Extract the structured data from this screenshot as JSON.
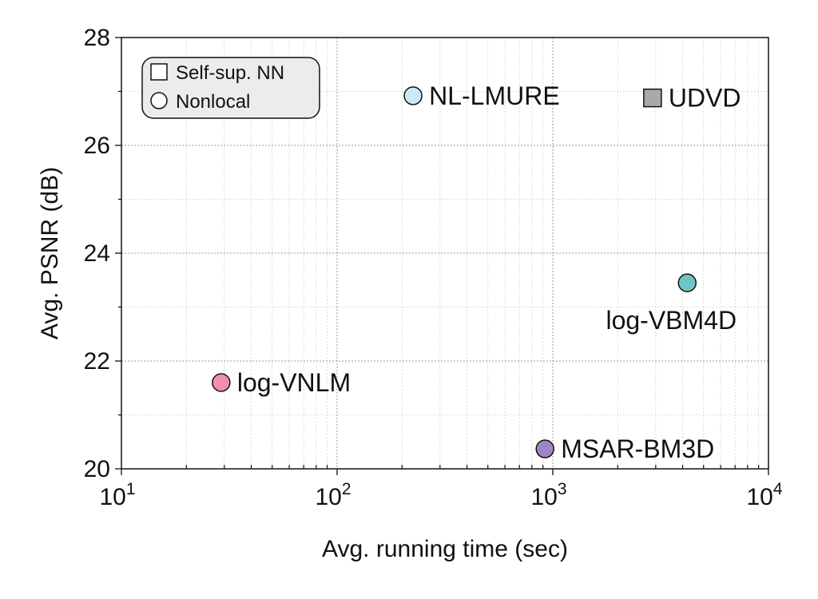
{
  "chart_data": {
    "type": "scatter",
    "xlabel": "Avg. running time (sec)",
    "ylabel": "Avg. PSNR (dB)",
    "xscale": "log",
    "xlim": [
      10,
      10000
    ],
    "ylim": [
      20,
      28
    ],
    "x_ticks": [
      {
        "base": "10",
        "exp": "1"
      },
      {
        "base": "10",
        "exp": "2"
      },
      {
        "base": "10",
        "exp": "3"
      },
      {
        "base": "10",
        "exp": "4"
      }
    ],
    "y_ticks": [
      "20",
      "22",
      "24",
      "26",
      "28"
    ],
    "grid": true,
    "legend": {
      "position": "top-left",
      "entries": [
        {
          "label": "Self-sup. NN",
          "marker": "square"
        },
        {
          "label": "Nonlocal",
          "marker": "circle"
        }
      ]
    },
    "points": [
      {
        "label": "NL-LMURE",
        "x": 225,
        "y": 26.92,
        "marker": "circle",
        "color": "#cce9f8",
        "label_side": "right"
      },
      {
        "label": "UDVD",
        "x": 2900,
        "y": 26.88,
        "marker": "square",
        "color": "#a9a9a9",
        "label_side": "right"
      },
      {
        "label": "log-VBM4D",
        "x": 4200,
        "y": 23.45,
        "marker": "circle",
        "color": "#6fc4c4",
        "label_side": "below"
      },
      {
        "label": "log-VNLM",
        "x": 29,
        "y": 21.6,
        "marker": "circle",
        "color": "#f28fb0",
        "label_side": "right"
      },
      {
        "label": "MSAR-BM3D",
        "x": 920,
        "y": 20.37,
        "marker": "circle",
        "color": "#9d86c2",
        "label_side": "right"
      }
    ]
  }
}
